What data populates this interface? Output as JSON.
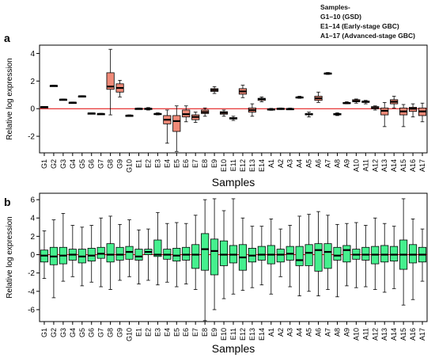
{
  "legend": {
    "title": "Samples-",
    "lines": [
      "G1–10 (GSD)",
      "E1–14 (Early-stage GBC)",
      "A1–17 (Advanced-stage GBC)"
    ]
  },
  "colors": {
    "panel_a_box": "#f08a78",
    "panel_b_box": "#45f08e",
    "reference_line": "#e00000"
  },
  "chart_data": [
    {
      "panel": "a",
      "type": "boxplot",
      "ylabel": "Relative log expression",
      "xlabel": "Samples",
      "ylim": [
        -3.2,
        4.6
      ],
      "yticks": [
        -2,
        0,
        2,
        4
      ],
      "reference_line": 0,
      "categories": [
        "G1",
        "G2",
        "G3",
        "G4",
        "G5",
        "G6",
        "G7",
        "G8",
        "G9",
        "G10",
        "E1",
        "E2",
        "E3",
        "E4",
        "E5",
        "E6",
        "E7",
        "E8",
        "E9",
        "E10",
        "E11",
        "E12",
        "E13",
        "E14",
        "A1",
        "A2",
        "A3",
        "A4",
        "A5",
        "A6",
        "A7",
        "A8",
        "A9",
        "A10",
        "A11",
        "A12",
        "A13",
        "A14",
        "A15",
        "A16",
        "A17"
      ],
      "boxes": [
        [
          0.08,
          0.1,
          0.12,
          0.14,
          0.16
        ],
        [
          1.62,
          1.64,
          1.66,
          1.68,
          1.7
        ],
        [
          0.62,
          0.64,
          0.66,
          0.68,
          0.7
        ],
        [
          0.4,
          0.42,
          0.44,
          0.46,
          0.48
        ],
        [
          0.86,
          0.88,
          0.9,
          0.92,
          0.94
        ],
        [
          -0.38,
          -0.36,
          -0.34,
          -0.32,
          -0.3
        ],
        [
          -0.42,
          -0.4,
          -0.38,
          -0.36,
          -0.34
        ],
        [
          -0.45,
          1.4,
          1.6,
          2.6,
          4.3
        ],
        [
          0.85,
          1.2,
          1.5,
          1.8,
          2.05
        ],
        [
          -0.55,
          -0.52,
          -0.5,
          -0.48,
          -0.45
        ],
        [
          -0.05,
          -0.02,
          0.0,
          0.02,
          0.05
        ],
        [
          -0.1,
          -0.05,
          0.0,
          0.02,
          0.08
        ],
        [
          -0.45,
          -0.4,
          -0.38,
          -0.35,
          -0.3
        ],
        [
          -2.5,
          -1.1,
          -0.8,
          -0.5,
          -0.1
        ],
        [
          -3.1,
          -1.65,
          -0.9,
          -0.5,
          0.2
        ],
        [
          -0.95,
          -0.6,
          -0.4,
          -0.1,
          0.2
        ],
        [
          -1.0,
          -0.8,
          -0.6,
          -0.45,
          -0.25
        ],
        [
          -0.55,
          -0.35,
          -0.25,
          -0.1,
          0.05
        ],
        [
          1.1,
          1.25,
          1.35,
          1.45,
          1.6
        ],
        [
          -0.55,
          -0.4,
          -0.3,
          -0.22,
          -0.1
        ],
        [
          -0.85,
          -0.75,
          -0.7,
          -0.65,
          -0.55
        ],
        [
          0.8,
          1.05,
          1.25,
          1.45,
          1.7
        ],
        [
          -0.55,
          -0.25,
          -0.1,
          0.05,
          0.35
        ],
        [
          0.5,
          0.6,
          0.7,
          0.75,
          0.85
        ],
        [
          -0.12,
          -0.08,
          -0.05,
          -0.02,
          0.02
        ],
        [
          -0.06,
          -0.03,
          0.0,
          0.02,
          0.05
        ],
        [
          -0.08,
          -0.04,
          -0.02,
          0.0,
          0.04
        ],
        [
          0.75,
          0.8,
          0.82,
          0.85,
          0.9
        ],
        [
          -0.6,
          -0.45,
          -0.4,
          -0.35,
          -0.25
        ],
        [
          0.45,
          0.6,
          0.75,
          0.9,
          1.2
        ],
        [
          2.48,
          2.52,
          2.55,
          2.58,
          2.62
        ],
        [
          -0.5,
          -0.45,
          -0.4,
          -0.35,
          -0.3
        ],
        [
          0.35,
          0.38,
          0.4,
          0.45,
          0.5
        ],
        [
          0.4,
          0.5,
          0.55,
          0.65,
          0.7
        ],
        [
          0.35,
          0.45,
          0.5,
          0.55,
          0.6
        ],
        [
          -0.1,
          0.0,
          0.05,
          0.15,
          0.2
        ],
        [
          -1.3,
          -0.45,
          -0.15,
          0.05,
          0.45
        ],
        [
          0.05,
          0.35,
          0.5,
          0.65,
          0.9
        ],
        [
          -1.3,
          -0.45,
          -0.2,
          0.05,
          0.3
        ],
        [
          -0.6,
          -0.2,
          0.0,
          0.1,
          0.35
        ],
        [
          -0.95,
          -0.5,
          -0.2,
          0.05,
          0.4
        ]
      ]
    },
    {
      "panel": "b",
      "type": "boxplot",
      "ylabel": "Relative log expression",
      "xlabel": "Samples",
      "ylim": [
        -7.3,
        6.7
      ],
      "yticks": [
        -6,
        -4,
        -2,
        0,
        2,
        4,
        6
      ],
      "reference_line": 0,
      "categories": [
        "G1",
        "G2",
        "G3",
        "G4",
        "G5",
        "G6",
        "G7",
        "G8",
        "G9",
        "G10",
        "E1",
        "E2",
        "E3",
        "E4",
        "E5",
        "E6",
        "E7",
        "E8",
        "E9",
        "E10",
        "E11",
        "E12",
        "E13",
        "E14",
        "A1",
        "A2",
        "A3",
        "A4",
        "A5",
        "A6",
        "A7",
        "A8",
        "A9",
        "A10",
        "A11",
        "A12",
        "A13",
        "A14",
        "A15",
        "A16",
        "A17"
      ],
      "boxes": [
        [
          -2.6,
          -0.8,
          -0.1,
          0.5,
          2.6
        ],
        [
          -4.7,
          -1.1,
          -0.2,
          0.8,
          3.8
        ],
        [
          -2.9,
          -1.0,
          -0.1,
          0.8,
          4.5
        ],
        [
          -2.4,
          -0.6,
          0.0,
          0.6,
          3.2
        ],
        [
          -3.4,
          -0.9,
          -0.2,
          0.6,
          3.0
        ],
        [
          -3.0,
          -0.7,
          -0.1,
          0.7,
          3.2
        ],
        [
          -3.5,
          -0.4,
          0.1,
          0.8,
          4.0
        ],
        [
          -3.8,
          -0.8,
          0.0,
          1.2,
          4.2
        ],
        [
          -2.8,
          -0.6,
          0.0,
          0.8,
          3.3
        ],
        [
          -2.4,
          -0.5,
          0.3,
          0.9,
          3.8
        ],
        [
          -3.2,
          -0.6,
          -0.2,
          0.6,
          2.7
        ],
        [
          -2.8,
          0.0,
          0.3,
          0.6,
          2.8
        ],
        [
          -3.3,
          -0.2,
          0.0,
          1.6,
          4.6
        ],
        [
          -3.0,
          -0.5,
          0.0,
          0.6,
          3.4
        ],
        [
          -3.5,
          -0.7,
          -0.1,
          0.7,
          3.5
        ],
        [
          -3.2,
          -0.6,
          0.0,
          0.8,
          3.4
        ],
        [
          -3.8,
          -1.5,
          0.0,
          1.1,
          4.3
        ],
        [
          -7.2,
          -1.7,
          0.6,
          2.3,
          6.0
        ],
        [
          -6.0,
          -2.2,
          0.4,
          1.7,
          6.1
        ],
        [
          -4.8,
          -1.2,
          0.0,
          1.5,
          4.8
        ],
        [
          -4.3,
          -0.9,
          0.0,
          1.0,
          6.1
        ],
        [
          -3.9,
          -1.7,
          -0.3,
          1.1,
          4.0
        ],
        [
          -3.6,
          -0.8,
          -0.1,
          0.7,
          3.1
        ],
        [
          -3.3,
          -0.6,
          0.0,
          0.9,
          3.1
        ],
        [
          -4.3,
          -1.0,
          0.0,
          1.0,
          3.9
        ],
        [
          -2.4,
          -0.8,
          0.0,
          0.6,
          2.8
        ],
        [
          -3.5,
          -0.6,
          0.1,
          0.9,
          3.2
        ],
        [
          -4.5,
          -1.2,
          -0.6,
          0.9,
          4.2
        ],
        [
          -4.0,
          -1.2,
          0.2,
          1.1,
          4.4
        ],
        [
          -4.5,
          -1.8,
          0.5,
          1.2,
          4.7
        ],
        [
          -3.8,
          -1.5,
          0.3,
          1.2,
          4.3
        ],
        [
          -4.6,
          -0.6,
          -0.1,
          0.8,
          3.3
        ],
        [
          -3.4,
          -0.8,
          0.5,
          1.0,
          3.4
        ],
        [
          -3.6,
          -0.5,
          0.0,
          0.6,
          3.5
        ],
        [
          -3.5,
          -0.6,
          0.0,
          0.8,
          3.2
        ],
        [
          -3.8,
          -1.0,
          0.0,
          0.9,
          4.0
        ],
        [
          -4.1,
          -0.8,
          0.0,
          1.0,
          3.4
        ],
        [
          -3.7,
          -0.7,
          0.0,
          0.9,
          3.1
        ],
        [
          -5.5,
          -1.6,
          0.0,
          1.6,
          6.1
        ],
        [
          -4.9,
          -0.9,
          0.0,
          1.1,
          3.9
        ],
        [
          -2.9,
          -0.8,
          0.0,
          0.8,
          2.8
        ]
      ]
    }
  ]
}
